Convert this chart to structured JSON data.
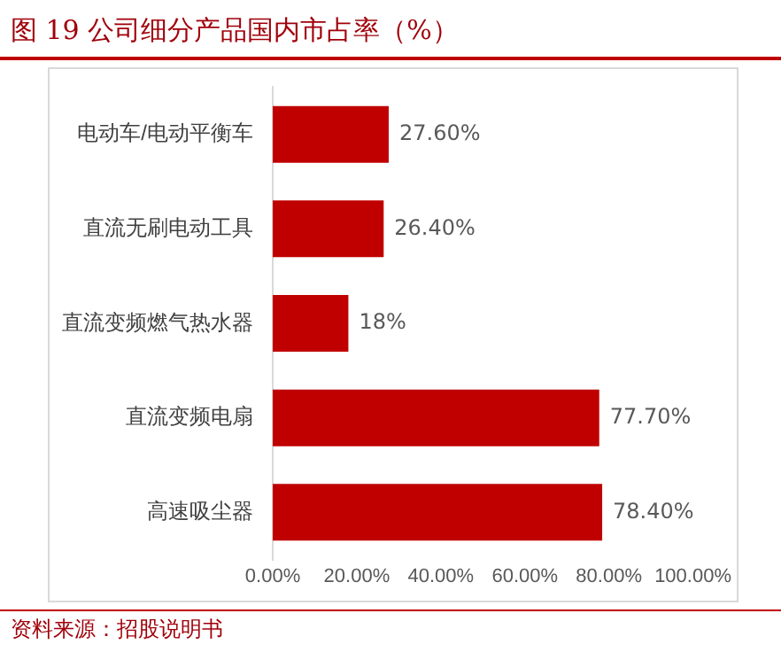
{
  "chart_data": {
    "type": "bar",
    "orientation": "horizontal",
    "title": "图 19 公司细分产品国内市占率（%）",
    "categories": [
      "电动车/电动平衡车",
      "直流无刷电动工具",
      "直流变频燃气热水器",
      "直流变频电扇",
      "高速吸尘器"
    ],
    "values": [
      27.6,
      26.4,
      18,
      77.7,
      78.4
    ],
    "value_labels": [
      "27.60%",
      "26.40%",
      "18%",
      "77.70%",
      "78.40%"
    ],
    "color": "#c00000",
    "xlim": [
      0,
      100
    ],
    "xticks": [
      {
        "value": 0,
        "label": "0.00%"
      },
      {
        "value": 20,
        "label": "20.00%"
      },
      {
        "value": 40,
        "label": "40.00%"
      },
      {
        "value": 60,
        "label": "60.00%"
      },
      {
        "value": 80,
        "label": "80.00%"
      },
      {
        "value": 100,
        "label": "100.00%"
      }
    ],
    "grid": false,
    "legend": false,
    "annotations": [
      "资料来源：招股说明书"
    ]
  }
}
